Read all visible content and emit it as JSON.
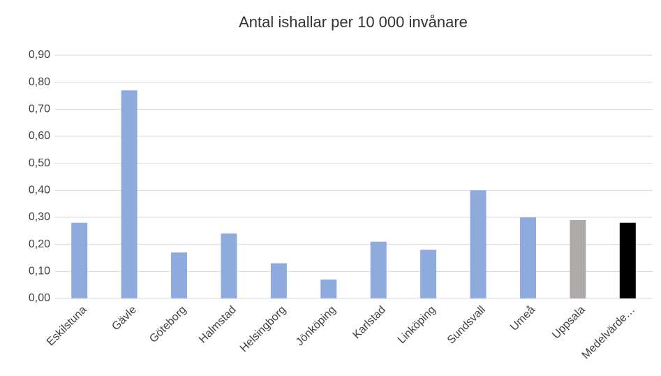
{
  "chart_data": {
    "type": "bar",
    "title": "Antal ishallar per 10 000 invånare",
    "categories": [
      "Eskilstuna",
      "Gävle",
      "Göteborg",
      "Halmstad",
      "Helsingborg",
      "Jönköping",
      "Karlstad",
      "Linköping",
      "Sundsvall",
      "Umeå",
      "Uppsala",
      "Medelvärde…"
    ],
    "values": [
      0.28,
      0.77,
      0.17,
      0.24,
      0.13,
      0.07,
      0.21,
      0.18,
      0.4,
      0.3,
      0.29,
      0.28
    ],
    "colors": [
      "#8faadc",
      "#8faadc",
      "#8faadc",
      "#8faadc",
      "#8faadc",
      "#8faadc",
      "#8faadc",
      "#8faadc",
      "#8faadc",
      "#8faadc",
      "#aeaaaa",
      "#000000"
    ],
    "ylim": [
      0,
      0.9
    ],
    "yticks": [
      {
        "value": 0,
        "label": "0,00"
      },
      {
        "value": 0.1,
        "label": "0,10"
      },
      {
        "value": 0.2,
        "label": "0,20"
      },
      {
        "value": 0.3,
        "label": "0,30"
      },
      {
        "value": 0.4,
        "label": "0,40"
      },
      {
        "value": 0.5,
        "label": "0,50"
      },
      {
        "value": 0.6,
        "label": "0,60"
      },
      {
        "value": 0.7,
        "label": "0,70"
      },
      {
        "value": 0.8,
        "label": "0,80"
      },
      {
        "value": 0.9,
        "label": "0,90"
      }
    ],
    "grid": true
  }
}
